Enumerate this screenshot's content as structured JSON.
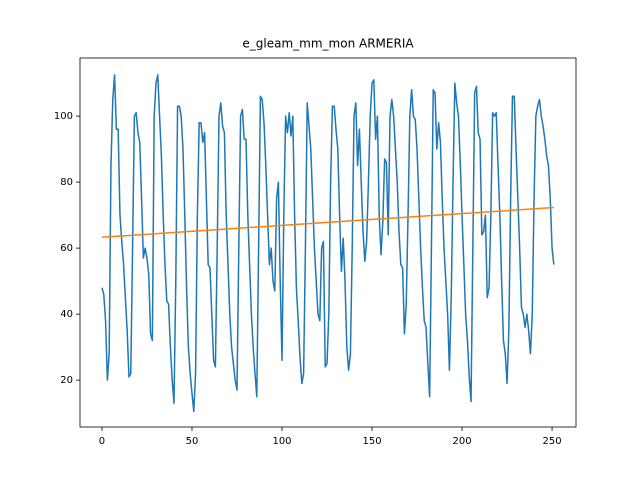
{
  "chart_data": {
    "type": "line",
    "title": "e_gleam_mm_mon ARMERIA",
    "xlim": [
      -12.2,
      263.3
    ],
    "xticks": [
      0,
      50,
      100,
      150,
      200,
      250
    ],
    "ylim": [
      5.8,
      117.6
    ],
    "yticks": [
      20,
      40,
      60,
      80,
      100
    ],
    "series": [
      {
        "color": "#1f77b4",
        "x": [
          0,
          1,
          2,
          3,
          4,
          5,
          6,
          7,
          8,
          9,
          10,
          11,
          12,
          13,
          14,
          15,
          16,
          17,
          18,
          19,
          20,
          21,
          22,
          23,
          24,
          25,
          26,
          27,
          28,
          29,
          30,
          31,
          32,
          33,
          34,
          35,
          36,
          37,
          38,
          39,
          40,
          41,
          42,
          43,
          44,
          45,
          46,
          47,
          48,
          49,
          50,
          51,
          52,
          53,
          54,
          55,
          56,
          57,
          58,
          59,
          60,
          61,
          62,
          63,
          64,
          65,
          66,
          67,
          68,
          69,
          70,
          71,
          72,
          73,
          74,
          75,
          76,
          77,
          78,
          79,
          80,
          81,
          82,
          83,
          84,
          85,
          86,
          87,
          88,
          89,
          90,
          91,
          92,
          93,
          94,
          95,
          96,
          97,
          98,
          99,
          100,
          101,
          102,
          103,
          104,
          105,
          106,
          107,
          108,
          109,
          110,
          111,
          112,
          113,
          114,
          115,
          116,
          117,
          118,
          119,
          120,
          121,
          122,
          123,
          124,
          125,
          126,
          127,
          128,
          129,
          130,
          131,
          132,
          133,
          134,
          135,
          136,
          137,
          138,
          139,
          140,
          141,
          142,
          143,
          144,
          145,
          146,
          147,
          148,
          149,
          150,
          151,
          152,
          153,
          154,
          155,
          156,
          157,
          158,
          159,
          160,
          161,
          162,
          163,
          164,
          165,
          166,
          167,
          168,
          169,
          170,
          171,
          172,
          173,
          174,
          175,
          176,
          177,
          178,
          179,
          180,
          181,
          182,
          183,
          184,
          185,
          186,
          187,
          188,
          189,
          190,
          191,
          192,
          193,
          194,
          195,
          196,
          197,
          198,
          199,
          200,
          201,
          202,
          203,
          204,
          205,
          206,
          207,
          208,
          209,
          210,
          211,
          212,
          213,
          214,
          215,
          216,
          217,
          218,
          219,
          220,
          221,
          222,
          223,
          224,
          225,
          226,
          227,
          228,
          229,
          230,
          231,
          232,
          233,
          234,
          235,
          236,
          237,
          238,
          239,
          240,
          241,
          242,
          243,
          244,
          245,
          246,
          247,
          248,
          249,
          250,
          251
        ],
        "values": [
          48,
          46,
          38,
          20,
          28,
          85,
          105,
          112.5,
          96,
          96,
          70,
          62,
          55,
          45,
          35,
          21,
          22,
          60,
          100,
          101,
          95,
          92,
          75,
          57,
          60,
          57,
          52,
          34,
          32,
          100,
          110,
          112.5,
          100,
          88,
          70,
          55,
          44,
          43,
          30,
          20,
          13,
          50,
          103,
          103,
          100,
          90,
          70,
          48,
          30,
          22,
          16,
          10.5,
          22,
          70,
          98,
          98,
          92,
          95,
          75,
          55,
          54,
          40,
          26,
          24,
          60,
          100,
          104,
          97,
          95,
          70,
          55,
          40,
          30,
          25,
          20,
          17,
          60,
          100,
          102,
          93,
          93,
          70,
          55,
          40,
          30,
          22,
          15,
          60,
          106,
          105,
          98,
          85,
          70,
          55,
          60,
          50,
          47,
          75,
          80,
          50,
          26,
          70,
          100,
          95,
          101,
          94,
          100,
          70,
          48,
          38,
          27,
          19,
          22,
          60,
          104,
          97,
          90,
          75,
          60,
          50,
          40,
          38,
          60,
          62,
          24,
          25,
          40,
          80,
          103,
          103,
          96,
          90,
          70,
          53,
          63,
          50,
          30,
          23,
          28,
          60,
          100,
          104,
          85,
          96,
          80,
          65,
          56,
          62,
          80,
          100,
          110,
          111,
          93,
          100,
          70,
          58,
          68,
          87,
          86,
          64,
          100,
          105,
          100,
          90,
          80,
          65,
          55,
          54,
          34,
          43,
          70,
          100,
          108,
          100,
          99,
          90,
          75,
          60,
          48,
          38,
          36,
          25,
          15,
          60,
          108,
          107,
          90,
          98,
          92,
          75,
          60,
          50,
          40,
          23,
          45,
          80,
          110,
          104,
          100,
          86,
          70,
          55,
          40,
          32,
          21,
          13.5,
          60,
          107,
          109,
          95,
          93,
          64,
          65,
          70,
          45,
          48,
          70,
          101,
          100,
          101,
          85,
          70,
          50,
          32,
          28,
          19,
          35,
          75,
          106,
          106,
          90,
          75,
          60,
          42,
          40,
          36,
          40,
          35,
          28,
          40,
          75,
          100,
          103,
          105,
          100,
          97,
          93,
          88,
          85,
          75,
          60,
          55
        ]
      },
      {
        "color": "#ff7f0e",
        "x": [
          0,
          251
        ],
        "values": [
          63.3,
          72.3
        ]
      }
    ]
  }
}
